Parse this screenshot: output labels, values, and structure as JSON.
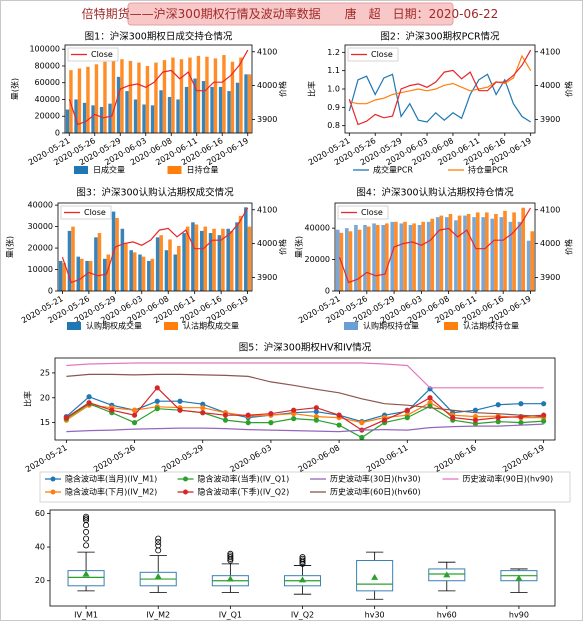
{
  "header": {
    "title": "倍特期货——沪深300期权行情及波动率数据　　唐　超　日期：2020-06-22"
  },
  "chart_data": [
    {
      "type": "bar",
      "title": "图1：沪深300期权日成交持仓情况",
      "ylabel": "量(张)",
      "y2label": "价格",
      "categories": [
        "2020-05-21",
        null,
        null,
        "2020-05-26",
        null,
        null,
        "2020-05-29",
        null,
        null,
        "2020-06-03",
        null,
        null,
        "2020-06-08",
        null,
        null,
        "2020-06-11",
        null,
        null,
        "2020-06-16",
        null,
        null,
        "2020-06-19"
      ],
      "series": [
        {
          "name": "日成交量",
          "color": "#1f77b4",
          "values": [
            28000,
            40000,
            36000,
            33000,
            31000,
            35000,
            67000,
            50000,
            40000,
            34000,
            33000,
            51000,
            43000,
            40000,
            55000,
            65000,
            62000,
            55000,
            55000,
            50000,
            60000,
            70000
          ]
        },
        {
          "name": "日持仓量",
          "color": "#ff7f0e",
          "values": [
            75000,
            77000,
            79000,
            82000,
            85000,
            86000,
            88000,
            86000,
            84000,
            80000,
            84000,
            87000,
            90000,
            88000,
            90000,
            92000,
            91000,
            89000,
            93000,
            85000,
            90000,
            70000
          ]
        },
        {
          "name": "Close",
          "type": "line",
          "axis": "y2",
          "color": "#e8272a",
          "values": [
            3960,
            3885,
            3895,
            3915,
            3905,
            3910,
            3990,
            4000,
            4005,
            3995,
            4010,
            4040,
            4045,
            4020,
            4040,
            3985,
            3985,
            4010,
            4010,
            4030,
            4060,
            4105
          ]
        }
      ],
      "ylim": [
        0,
        105000
      ],
      "yticks": [
        0,
        20000,
        40000,
        60000,
        80000,
        100000
      ],
      "y2lim": [
        3860,
        4120
      ],
      "y2ticks": [
        3900,
        4000,
        4100
      ],
      "legend": "below",
      "y2_legend": "upper left"
    },
    {
      "type": "line",
      "title": "图2：沪深300期权PCR情况",
      "ylabel": "比率",
      "y2label": "价格",
      "categories": [
        "2020-05-21",
        null,
        null,
        "2020-05-26",
        null,
        null,
        "2020-05-29",
        null,
        null,
        "2020-06-03",
        null,
        null,
        "2020-06-08",
        null,
        null,
        "2020-06-11",
        null,
        null,
        "2020-06-16",
        null,
        null,
        "2020-06-19"
      ],
      "series": [
        {
          "name": "成交量PCR",
          "color": "#1f77b4",
          "values": [
            0.88,
            1.05,
            1.07,
            0.97,
            1.06,
            1.08,
            0.85,
            0.92,
            0.83,
            0.82,
            0.87,
            0.83,
            0.87,
            0.84,
            0.97,
            1.05,
            1.08,
            0.97,
            1.05,
            0.92,
            0.85,
            0.82
          ]
        },
        {
          "name": "持仓量PCR",
          "color": "#ff7f0e",
          "values": [
            0.93,
            0.92,
            0.92,
            0.94,
            0.95,
            0.97,
            0.98,
            0.99,
            1.0,
            0.99,
            1.0,
            1.02,
            1.03,
            1.01,
            0.99,
            1.0,
            1.01,
            1.04,
            1.03,
            1.06,
            1.18,
            1.1
          ]
        },
        {
          "name": "Close",
          "axis": "y2",
          "color": "#e8272a",
          "values": [
            3960,
            3885,
            3895,
            3915,
            3905,
            3910,
            3990,
            4000,
            4005,
            3995,
            4010,
            4040,
            4045,
            4020,
            4040,
            3985,
            3985,
            4010,
            4010,
            4030,
            4060,
            4105
          ]
        }
      ],
      "ylim": [
        0.76,
        1.24
      ],
      "yticks": [
        0.8,
        0.9,
        {
          "value": 1,
          "label": "1.0"
        },
        1.1,
        1.2
      ],
      "y2lim": [
        3860,
        4120
      ],
      "y2ticks": [
        3900,
        4000,
        4100
      ],
      "legend": "below",
      "y2_legend": "upper left"
    },
    {
      "type": "bar",
      "title": "图3：沪深300认购认沽期权成交情况",
      "ylabel": "量(张)",
      "y2label": "价格",
      "categories": [
        "2020-05-21",
        null,
        null,
        "2020-05-26",
        null,
        null,
        "2020-05-29",
        null,
        null,
        "2020-06-03",
        null,
        null,
        "2020-06-08",
        null,
        null,
        "2020-06-11",
        null,
        null,
        "2020-06-16",
        null,
        null,
        "2020-06-19"
      ],
      "series": [
        {
          "name": "认购期权成交量",
          "color": "#1f77b4",
          "values": [
            14000,
            28000,
            16000,
            14000,
            25000,
            15000,
            37000,
            29000,
            19000,
            17000,
            14000,
            25000,
            19000,
            17000,
            27000,
            32000,
            28000,
            27000,
            26000,
            29000,
            32000,
            39000
          ]
        },
        {
          "name": "认沽期权成交量",
          "color": "#ff7f0e",
          "values": [
            13000,
            30000,
            15000,
            14000,
            27000,
            17000,
            34000,
            22000,
            18000,
            16000,
            15000,
            26000,
            24000,
            21000,
            30000,
            31000,
            30000,
            29000,
            29000,
            28000,
            35000,
            30000
          ]
        },
        {
          "name": "Close",
          "type": "line",
          "axis": "y2",
          "color": "#e8272a",
          "values": [
            3960,
            3885,
            3895,
            3915,
            3905,
            3910,
            3990,
            4000,
            4005,
            3995,
            4010,
            4040,
            4045,
            4020,
            4040,
            3985,
            3985,
            4010,
            4010,
            4030,
            4060,
            4105
          ]
        }
      ],
      "ylim": [
        0,
        41000
      ],
      "yticks": [
        0,
        10000,
        20000,
        30000,
        40000
      ],
      "y2lim": [
        3860,
        4120
      ],
      "y2ticks": [
        3900,
        4000,
        4100
      ],
      "legend": "below",
      "y2_legend": "upper left"
    },
    {
      "type": "bar",
      "title": "图4：沪深300认购认沽期权持仓情况",
      "ylabel": "量(张)",
      "y2label": "价格",
      "categories": [
        "2020-05-21",
        null,
        null,
        "2020-05-26",
        null,
        null,
        "2020-05-29",
        null,
        null,
        "2020-06-03",
        null,
        null,
        "2020-06-08",
        null,
        null,
        "2020-06-11",
        null,
        null,
        "2020-06-16",
        null,
        null,
        "2020-06-19"
      ],
      "series": [
        {
          "name": "认购期权持仓量",
          "color": "#6a9fd4",
          "values": [
            39000,
            40000,
            42000,
            42000,
            43000,
            42000,
            44000,
            43000,
            42000,
            42000,
            44000,
            47000,
            47000,
            45000,
            48000,
            47000,
            47000,
            46000,
            47000,
            44000,
            44000,
            32000
          ]
        },
        {
          "name": "认沽期权持仓量",
          "color": "#ff7f0e",
          "values": [
            37000,
            38000,
            39000,
            41000,
            42000,
            43000,
            44000,
            44000,
            43000,
            44000,
            46000,
            48000,
            49000,
            48000,
            49000,
            50000,
            50000,
            49000,
            51000,
            50000,
            53000,
            38000
          ]
        },
        {
          "name": "Close",
          "type": "line",
          "axis": "y2",
          "color": "#e8272a",
          "values": [
            3960,
            3885,
            3895,
            3915,
            3905,
            3910,
            3990,
            4000,
            4005,
            3995,
            4010,
            4040,
            4045,
            4020,
            4040,
            3985,
            3985,
            4010,
            4010,
            4030,
            4060,
            4105
          ]
        }
      ],
      "ylim": [
        0,
        56000
      ],
      "yticks": [
        0,
        20000,
        40000
      ],
      "y2lim": [
        3860,
        4120
      ],
      "y2ticks": [
        3900,
        4000,
        4100
      ],
      "legend": "below",
      "y2_legend": "upper left"
    },
    {
      "type": "line",
      "title": "图5：沪深300期权HV和IV情况",
      "ylabel": "比率",
      "categories": [
        "2020-05-21",
        null,
        null,
        "2020-05-26",
        null,
        null,
        "2020-05-29",
        null,
        null,
        "2020-06-03",
        null,
        null,
        "2020-06-08",
        null,
        null,
        "2020-06-11",
        null,
        null,
        "2020-06-16",
        null,
        null,
        "2020-06-19"
      ],
      "series": [
        {
          "name": "隐含波动率(当月)(IV_M1)",
          "color": "#1f77b4",
          "marker": "o",
          "values": [
            16.2,
            20.2,
            18.5,
            17.5,
            19.3,
            19.3,
            18.7,
            17.0,
            16.0,
            16.5,
            17.0,
            17.2,
            16.5,
            15.2,
            16.5,
            17.3,
            21.8,
            17.0,
            17.5,
            18.6,
            18.8,
            18.8
          ]
        },
        {
          "name": "隐含波动率(下月)(IV_M2)",
          "color": "#ff7f0e",
          "marker": "o",
          "values": [
            15.5,
            18.5,
            18.0,
            17.5,
            18.2,
            18.0,
            18.0,
            17.0,
            16.3,
            16.5,
            16.8,
            16.2,
            16.0,
            15.0,
            16.0,
            16.5,
            19.0,
            16.5,
            16.2,
            16.3,
            16.0,
            16.0
          ]
        },
        {
          "name": "隐含波动率(当季)(IV_Q1)",
          "color": "#2ca02c",
          "marker": "o",
          "values": [
            15.8,
            18.8,
            17.0,
            15.0,
            17.8,
            17.5,
            17.0,
            15.5,
            15.0,
            15.0,
            15.8,
            15.5,
            14.5,
            12.0,
            15.0,
            16.0,
            18.3,
            15.5,
            14.8,
            15.2,
            15.0,
            15.3
          ]
        },
        {
          "name": "隐含波动率(下季)(IV_Q2)",
          "color": "#d62728",
          "marker": "o",
          "values": [
            16.0,
            19.0,
            17.5,
            16.5,
            22.0,
            17.5,
            17.0,
            16.5,
            16.5,
            16.8,
            17.5,
            18.0,
            16.5,
            13.5,
            15.5,
            17.5,
            20.0,
            16.0,
            15.5,
            16.0,
            16.2,
            16.5
          ]
        },
        {
          "name": "历史波动率(30日)(hv30)",
          "color": "#9467bd",
          "values": [
            13.2,
            13.4,
            13.5,
            13.7,
            13.8,
            13.9,
            13.9,
            13.8,
            13.6,
            13.5,
            13.4,
            13.3,
            13.2,
            13.5,
            13.6,
            13.5,
            14.0,
            14.2,
            14.3,
            14.3,
            14.5,
            14.7
          ]
        },
        {
          "name": "历史波动率(60日)(hv60)",
          "color": "#8c564b",
          "values": [
            24.3,
            24.7,
            24.7,
            24.6,
            24.7,
            24.7,
            24.6,
            24.5,
            24.3,
            23.2,
            22.5,
            21.7,
            21.0,
            19.8,
            18.8,
            18.5,
            18.0,
            17.5,
            17.0,
            16.8,
            16.5,
            16.2
          ]
        },
        {
          "name": "历史波动率(90日)(hv90)",
          "color": "#e377c2",
          "values": [
            26.5,
            26.8,
            26.9,
            27.0,
            27.0,
            27.0,
            27.0,
            27.0,
            27.0,
            27.0,
            27.0,
            27.0,
            27.0,
            27.0,
            26.8,
            26.5,
            22.0,
            22.0,
            22.0,
            22.0,
            22.0,
            22.0
          ]
        }
      ],
      "ylim": [
        11.5,
        28
      ],
      "yticks": [
        15,
        20,
        25
      ],
      "legend": "below",
      "legend_columns": 4
    },
    {
      "type": "box",
      "categories": [
        "IV_M1",
        "IV_M2",
        "IV_Q1",
        "IV_Q2",
        "hv30",
        "hv60",
        "hv90"
      ],
      "box_color": "#3a7fb5",
      "median_color": "#2ca02c",
      "mean_color": "#2ca02c",
      "boxes": [
        {
          "whislo": 14,
          "q1": 17,
          "med": 22,
          "q3": 26,
          "whishi": 37,
          "mean": 24,
          "fliers": [
            41,
            45,
            49,
            53,
            56,
            57,
            58
          ]
        },
        {
          "whislo": 13,
          "q1": 17,
          "med": 21,
          "q3": 25,
          "whishi": 35,
          "mean": 22.5,
          "fliers": [
            38,
            41,
            43,
            45
          ]
        },
        {
          "whislo": 13,
          "q1": 17,
          "med": 20,
          "q3": 23,
          "whishi": 30,
          "mean": 21,
          "fliers": [
            32,
            33,
            34,
            35,
            36
          ]
        },
        {
          "whislo": 12,
          "q1": 17,
          "med": 20,
          "q3": 23,
          "whishi": 29,
          "mean": 20.5,
          "fliers": [
            30,
            31,
            32,
            33,
            34
          ]
        },
        {
          "whislo": 9,
          "q1": 14,
          "med": 18,
          "q3": 32,
          "whishi": 37,
          "mean": 22,
          "fliers": []
        },
        {
          "whislo": 14,
          "q1": 20,
          "med": 24,
          "q3": 27,
          "whishi": 31,
          "mean": 23.5,
          "fliers": []
        },
        {
          "whislo": 13,
          "q1": 20,
          "med": 23,
          "q3": 26,
          "whishi": 27,
          "mean": 21.5,
          "fliers": []
        }
      ],
      "ylim": [
        5,
        62
      ],
      "yticks": [
        20,
        40,
        60
      ]
    }
  ]
}
